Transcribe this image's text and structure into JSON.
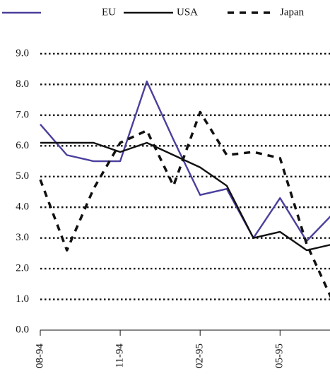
{
  "chart_data": {
    "type": "line",
    "categories": [
      "08-94",
      null,
      null,
      "11-94",
      null,
      null,
      "02-95",
      null,
      null,
      "05-95",
      null,
      null
    ],
    "series": [
      {
        "name": "EU",
        "color": "#4a3f9c",
        "dash": false,
        "values": [
          6.7,
          5.7,
          5.5,
          5.5,
          8.1,
          6.2,
          4.4,
          4.6,
          3.0,
          4.3,
          2.9,
          3.8
        ]
      },
      {
        "name": "USA",
        "color": "#111111",
        "dash": false,
        "values": [
          6.1,
          6.1,
          6.1,
          5.8,
          6.1,
          5.7,
          5.3,
          4.7,
          3.0,
          3.2,
          2.6,
          2.8
        ]
      },
      {
        "name": "Japan",
        "color": "#111111",
        "dash": true,
        "values": [
          4.9,
          2.6,
          4.6,
          6.1,
          6.5,
          4.7,
          7.1,
          5.7,
          5.8,
          5.6,
          2.8,
          0.9
        ]
      }
    ],
    "ylim": [
      0,
      9
    ],
    "yticks": [
      {
        "value": 0,
        "label": "0.0"
      },
      {
        "value": 1,
        "label": "1.0"
      },
      {
        "value": 2,
        "label": "2.0"
      },
      {
        "value": 3,
        "label": "3.0"
      },
      {
        "value": 4,
        "label": "4.0"
      },
      {
        "value": 5,
        "label": "5.0"
      },
      {
        "value": 6,
        "label": "6.0"
      },
      {
        "value": 7,
        "label": "7.0"
      },
      {
        "value": 8,
        "label": "8.0"
      },
      {
        "value": 9,
        "label": "9.0"
      }
    ],
    "grid": true,
    "legend": "top"
  }
}
